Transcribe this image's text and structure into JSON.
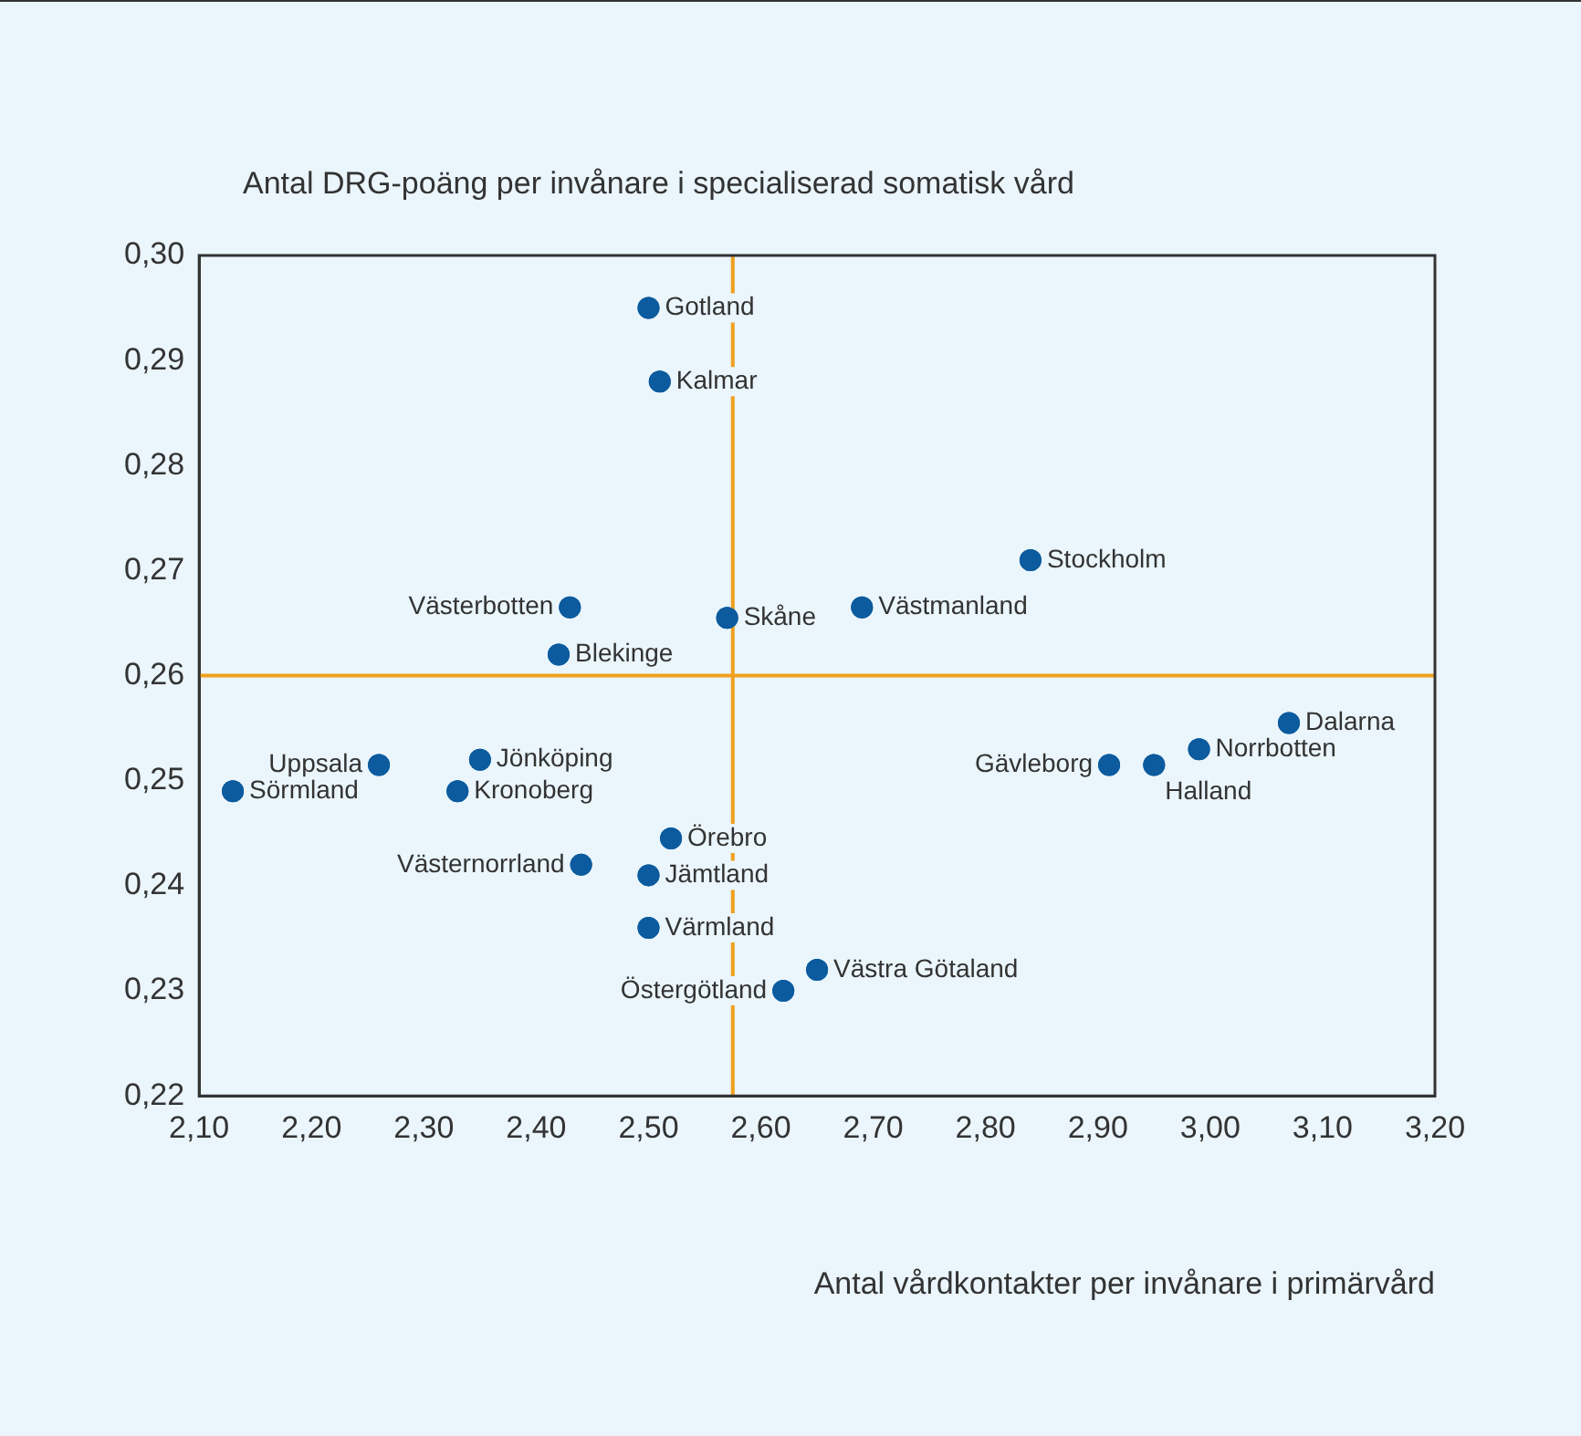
{
  "chart_data": {
    "type": "scatter",
    "ylabel": "Antal DRG-poäng per invånare i specialiserad somatisk vård",
    "xlabel": "Antal vårdkontakter per invånare i primärvård",
    "x": [
      2.5,
      2.51,
      2.84,
      2.43,
      2.57,
      2.69,
      2.42,
      3.07,
      2.99,
      2.91,
      2.95,
      2.26,
      2.35,
      2.13,
      2.33,
      2.52,
      2.44,
      2.5,
      2.5,
      2.65,
      2.62
    ],
    "series": [
      {
        "color": "#0b5b9e",
        "values": [
          0.295,
          0.288,
          0.271,
          0.2665,
          0.2655,
          0.2665,
          0.262,
          0.2555,
          0.253,
          0.2515,
          0.2515,
          0.2515,
          0.252,
          0.249,
          0.249,
          0.2445,
          0.242,
          0.241,
          0.236,
          0.232,
          0.23
        ]
      }
    ],
    "annotations": [
      {
        "text": "Gotland",
        "x": 2.5,
        "y": 0.295
      },
      {
        "text": "Kalmar",
        "x": 2.51,
        "y": 0.288
      },
      {
        "text": "Stockholm",
        "x": 2.84,
        "y": 0.271
      },
      {
        "text": "Västerbotten",
        "x": 2.43,
        "y": 0.2665
      },
      {
        "text": "Skåne",
        "x": 2.57,
        "y": 0.2655
      },
      {
        "text": "Västmanland",
        "x": 2.69,
        "y": 0.2665
      },
      {
        "text": "Blekinge",
        "x": 2.42,
        "y": 0.262
      },
      {
        "text": "Dalarna",
        "x": 3.07,
        "y": 0.2555
      },
      {
        "text": "Norrbotten",
        "x": 2.99,
        "y": 0.253
      },
      {
        "text": "Gävleborg",
        "x": 2.91,
        "y": 0.2515
      },
      {
        "text": "Halland",
        "x": 2.95,
        "y": 0.2515
      },
      {
        "text": "Uppsala",
        "x": 2.26,
        "y": 0.2515
      },
      {
        "text": "Jönköping",
        "x": 2.35,
        "y": 0.252
      },
      {
        "text": "Sörmland",
        "x": 2.13,
        "y": 0.249
      },
      {
        "text": "Kronoberg",
        "x": 2.33,
        "y": 0.249
      },
      {
        "text": "Örebro",
        "x": 2.52,
        "y": 0.2445
      },
      {
        "text": "Västernorrland",
        "x": 2.44,
        "y": 0.242
      },
      {
        "text": "Jämtland",
        "x": 2.5,
        "y": 0.241
      },
      {
        "text": "Värmland",
        "x": 2.5,
        "y": 0.236
      },
      {
        "text": "Västra Götaland",
        "x": 2.65,
        "y": 0.232
      },
      {
        "text": "Östergötland",
        "x": 2.62,
        "y": 0.23
      }
    ],
    "xlim": [
      2.1,
      3.2
    ],
    "xticks": [
      {
        "value": 2.1,
        "label": "2,10"
      },
      {
        "value": 2.2,
        "label": "2,20"
      },
      {
        "value": 2.3,
        "label": "2,30"
      },
      {
        "value": 2.4,
        "label": "2,40"
      },
      {
        "value": 2.5,
        "label": "2,50"
      },
      {
        "value": 2.6,
        "label": "2,60"
      },
      {
        "value": 2.7,
        "label": "2,70"
      },
      {
        "value": 2.8,
        "label": "2,80"
      },
      {
        "value": 2.9,
        "label": "2,90"
      },
      {
        "value": 3.0,
        "label": "3,00"
      },
      {
        "value": 3.1,
        "label": "3,10"
      },
      {
        "value": 3.2,
        "label": "3,20"
      }
    ],
    "ylim": [
      0.22,
      0.3
    ],
    "yticks": [
      {
        "value": 0.22,
        "label": "0,22"
      },
      {
        "value": 0.23,
        "label": "0,23"
      },
      {
        "value": 0.24,
        "label": "0,24"
      },
      {
        "value": 0.25,
        "label": "0,25"
      },
      {
        "value": 0.26,
        "label": "0,26"
      },
      {
        "value": 0.27,
        "label": "0,27"
      },
      {
        "value": 0.28,
        "label": "0,28"
      },
      {
        "value": 0.29,
        "label": "0,29"
      },
      {
        "value": 0.3,
        "label": "0,30"
      }
    ],
    "ref_lines": [
      {
        "axis": "x",
        "value": 2.575,
        "color": "#f0a01e"
      },
      {
        "axis": "y",
        "value": 0.26,
        "color": "#f0a01e"
      }
    ],
    "grid": false,
    "legend": false,
    "marker": "circle"
  }
}
